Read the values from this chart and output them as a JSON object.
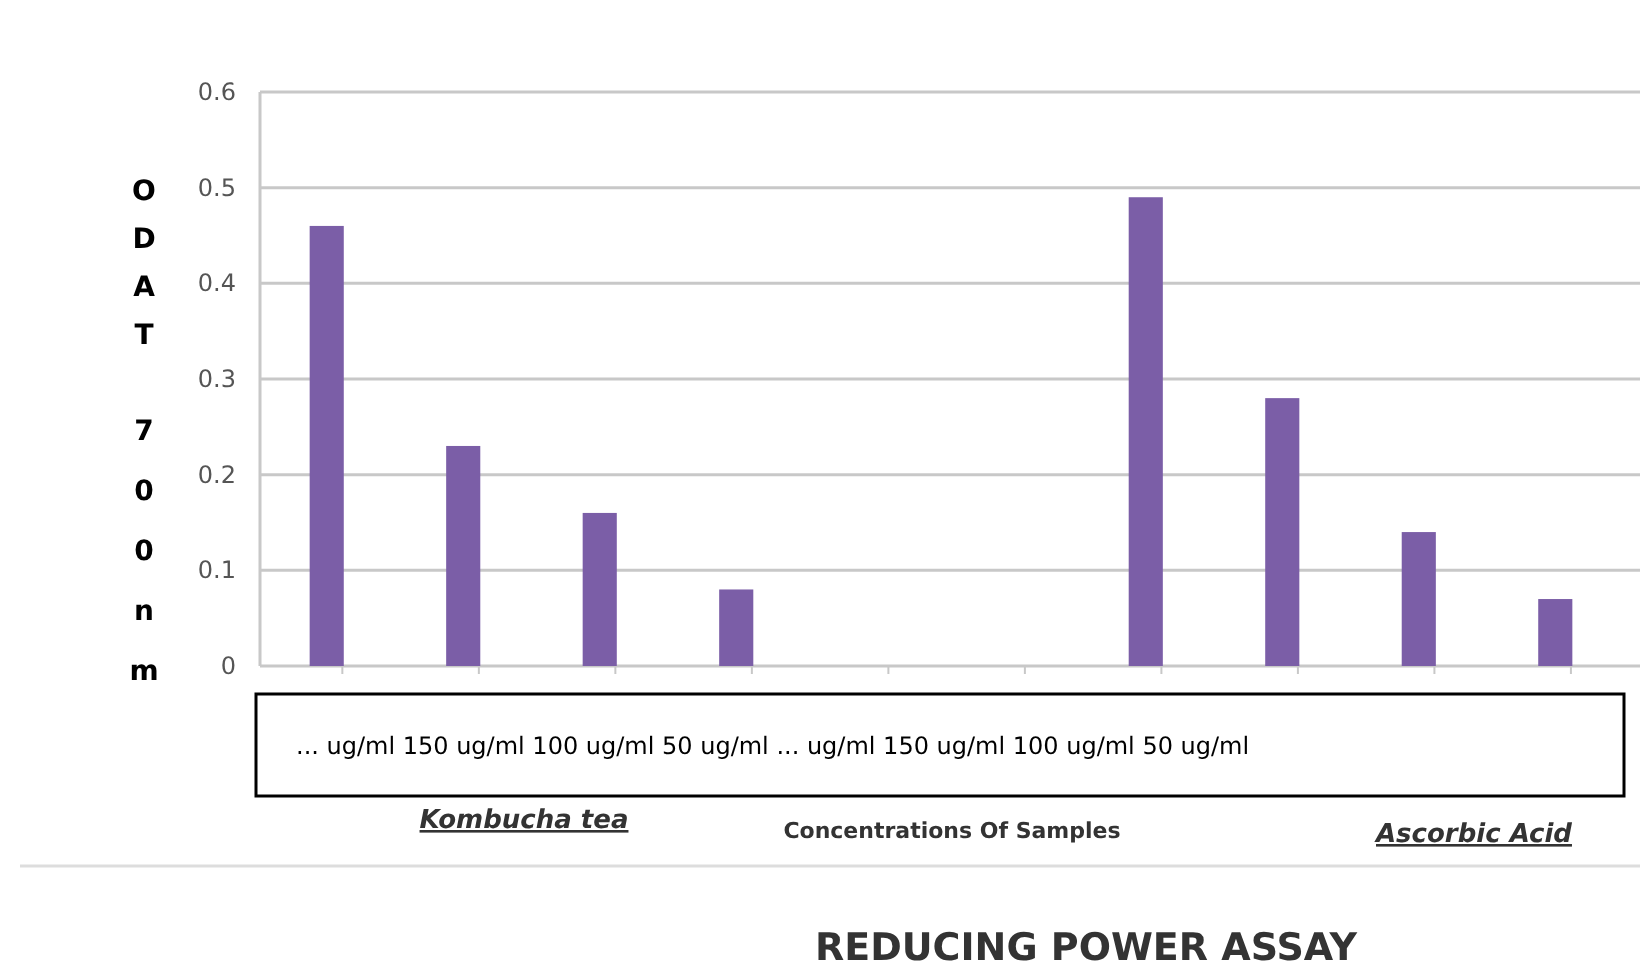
{
  "chart_data": {
    "type": "bar",
    "title": "REDUCING POWER ASSAY",
    "ylabel": "ODAT700nm",
    "categories": [
      null,
      null,
      null,
      null,
      null,
      null,
      null,
      null,
      null,
      null
    ],
    "values": [
      0.46,
      0.23,
      0.16,
      0.08,
      null,
      null,
      0.49,
      0.28,
      0.14,
      0.07
    ],
    "color": "#7b5ea7",
    "ylim": [
      0,
      0.6
    ],
    "yticks": [
      0,
      0.1,
      0.2,
      0.3,
      0.4,
      0.5,
      0.6
    ],
    "grid": "y",
    "tick_labels": "y",
    "annotations": [
      "... ug/ml 150 ug/ml 100 ug/ml 50 ug/ml ... ug/ml 150 ug/ml 100 ug/ml 50 ug/ml",
      "Kombucha tea",
      "Concentrations  Of Samples",
      "Ascorbic Acid"
    ]
  }
}
